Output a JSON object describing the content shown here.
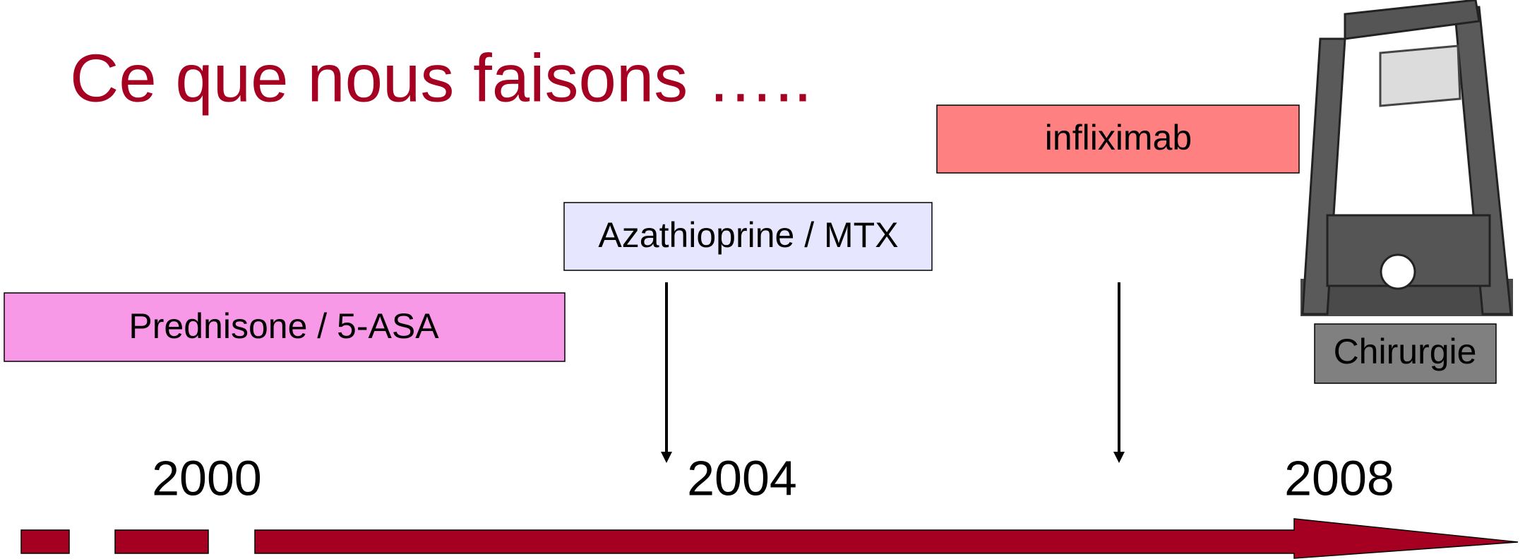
{
  "header": {
    "title": "Ce que nous faisons ….."
  },
  "treatments": [
    {
      "label": "Prednisone / 5-ASA"
    },
    {
      "label": "Azathioprine / MTX"
    },
    {
      "label": "infliximab"
    },
    {
      "label": "Chirurgie"
    }
  ],
  "timeline": {
    "years": [
      "2000",
      "2004",
      "2008"
    ]
  }
}
